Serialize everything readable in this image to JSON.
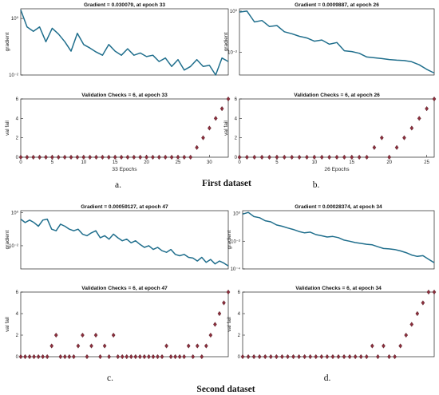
{
  "panel_labels": [
    "a.",
    "b.",
    "c.",
    "d."
  ],
  "dataset_labels": [
    "First dataset",
    "Second dataset"
  ],
  "chart_data": [
    {
      "type": "line",
      "id": "gradient-a",
      "title": "Gradient = 0.030079, at epoch 33",
      "xlabel": "",
      "ylabel": "gradient",
      "log_y": true,
      "xlim": [
        0,
        33
      ],
      "ylim": [
        0.01,
        2.2
      ],
      "yticks": [
        0.01,
        1
      ],
      "ytick_labels": [
        "10⁻²",
        "10⁰"
      ],
      "xticks": [],
      "xtick_labels": [],
      "series": [
        {
          "x": [
            0,
            1,
            2,
            3,
            4,
            5,
            6,
            7,
            8,
            9,
            10,
            11,
            12,
            13,
            14,
            15,
            16,
            17,
            18,
            19,
            20,
            21,
            22,
            23,
            24,
            25,
            26,
            27,
            28,
            29,
            30,
            31,
            32,
            33
          ],
          "values": [
            2.0,
            0.5,
            0.35,
            0.5,
            0.15,
            0.45,
            0.28,
            0.15,
            0.07,
            0.3,
            0.12,
            0.09,
            0.065,
            0.05,
            0.12,
            0.07,
            0.05,
            0.085,
            0.05,
            0.06,
            0.045,
            0.05,
            0.03,
            0.04,
            0.02,
            0.035,
            0.015,
            0.02,
            0.035,
            0.02,
            0.022,
            0.01,
            0.04,
            0.03
          ]
        }
      ]
    },
    {
      "type": "scatter",
      "id": "validation-a",
      "title": "Validation Checks = 6, at epoch 33",
      "xlabel": "33 Epochs",
      "ylabel": "val fail",
      "xlim": [
        0,
        33
      ],
      "ylim": [
        0,
        6
      ],
      "yticks": [
        0,
        2,
        4,
        6
      ],
      "ytick_labels": [
        "0",
        "2",
        "4",
        "6"
      ],
      "xticks": [
        0,
        5,
        10,
        15,
        20,
        25,
        30
      ],
      "xtick_labels": [
        "0",
        "5",
        "10",
        "15",
        "20",
        "25",
        "30"
      ],
      "series": [
        {
          "x": [
            0,
            1,
            2,
            3,
            4,
            5,
            6,
            7,
            8,
            9,
            10,
            11,
            12,
            13,
            14,
            15,
            16,
            17,
            18,
            19,
            20,
            21,
            22,
            23,
            24,
            25,
            26,
            27,
            28,
            29,
            30,
            31,
            32,
            33
          ],
          "values": [
            0,
            0,
            0,
            0,
            0,
            0,
            0,
            0,
            0,
            0,
            0,
            0,
            0,
            0,
            0,
            0,
            0,
            0,
            0,
            0,
            0,
            0,
            0,
            0,
            0,
            0,
            0,
            0,
            1,
            2,
            3,
            4,
            5,
            6
          ]
        }
      ]
    },
    {
      "type": "line",
      "id": "gradient-b",
      "title": "Gradient = 0.0009887, at epoch 26",
      "xlabel": "",
      "ylabel": "gradient",
      "log_y": true,
      "xlim": [
        0,
        26
      ],
      "ylim": [
        0.0008,
        1.3
      ],
      "yticks": [
        0.01,
        1
      ],
      "ytick_labels": [
        "10⁻²",
        "10⁰"
      ],
      "xticks": [],
      "xtick_labels": [],
      "series": [
        {
          "x": [
            0,
            1,
            2,
            3,
            4,
            5,
            6,
            7,
            8,
            9,
            10,
            11,
            12,
            13,
            14,
            15,
            16,
            17,
            18,
            19,
            20,
            21,
            22,
            23,
            24,
            25,
            26
          ],
          "values": [
            0.9,
            1.0,
            0.3,
            0.35,
            0.18,
            0.2,
            0.1,
            0.08,
            0.06,
            0.05,
            0.035,
            0.04,
            0.025,
            0.03,
            0.012,
            0.011,
            0.009,
            0.006,
            0.0055,
            0.005,
            0.0045,
            0.0042,
            0.004,
            0.0035,
            0.0025,
            0.0015,
            0.001
          ]
        }
      ]
    },
    {
      "type": "scatter",
      "id": "validation-b",
      "title": "Validation Checks = 6, at epoch 26",
      "xlabel": "26 Epochs",
      "ylabel": "val fail",
      "xlim": [
        0,
        26
      ],
      "ylim": [
        0,
        6
      ],
      "yticks": [
        0,
        2,
        4,
        6
      ],
      "ytick_labels": [
        "0",
        "2",
        "4",
        "6"
      ],
      "xticks": [
        0,
        5,
        10,
        15,
        20,
        25
      ],
      "xtick_labels": [
        "0",
        "5",
        "10",
        "15",
        "20",
        "25"
      ],
      "series": [
        {
          "x": [
            0,
            1,
            2,
            3,
            4,
            5,
            6,
            7,
            8,
            9,
            10,
            11,
            12,
            13,
            14,
            15,
            16,
            17,
            18,
            19,
            20,
            21,
            22,
            23,
            24,
            25,
            26
          ],
          "values": [
            0,
            0,
            0,
            0,
            0,
            0,
            0,
            0,
            0,
            0,
            0,
            0,
            0,
            0,
            0,
            0,
            0,
            0,
            1,
            2,
            0,
            1,
            2,
            3,
            4,
            5,
            6
          ]
        }
      ]
    },
    {
      "type": "line",
      "id": "gradient-c",
      "title": "Gradient = 0.00059127, at epoch 47",
      "xlabel": "",
      "ylabel": "gradient",
      "log_y": true,
      "xlim": [
        0,
        47
      ],
      "ylim": [
        0.0004,
        1.3
      ],
      "yticks": [
        0.01,
        1
      ],
      "ytick_labels": [
        "10⁻²",
        "10⁰"
      ],
      "xticks": [],
      "xtick_labels": [],
      "series": [
        {
          "x": [
            0,
            1,
            2,
            3,
            4,
            5,
            6,
            7,
            8,
            9,
            10,
            11,
            12,
            13,
            14,
            15,
            16,
            17,
            18,
            19,
            20,
            21,
            22,
            23,
            24,
            25,
            26,
            27,
            28,
            29,
            30,
            31,
            32,
            33,
            34,
            35,
            36,
            37,
            38,
            39,
            40,
            41,
            42,
            43,
            44,
            45,
            46,
            47
          ],
          "values": [
            0.4,
            0.25,
            0.35,
            0.25,
            0.15,
            0.35,
            0.4,
            0.1,
            0.08,
            0.2,
            0.15,
            0.1,
            0.08,
            0.1,
            0.05,
            0.04,
            0.06,
            0.08,
            0.03,
            0.04,
            0.025,
            0.05,
            0.03,
            0.02,
            0.025,
            0.015,
            0.02,
            0.012,
            0.008,
            0.01,
            0.006,
            0.008,
            0.005,
            0.004,
            0.006,
            0.003,
            0.0025,
            0.003,
            0.002,
            0.0018,
            0.0012,
            0.002,
            0.001,
            0.0015,
            0.0008,
            0.0012,
            0.0009,
            0.0006
          ]
        }
      ]
    },
    {
      "type": "scatter",
      "id": "validation-c",
      "title": "Validation Checks = 6, at epoch 47",
      "xlabel": "",
      "ylabel": "val fail",
      "xlim": [
        0,
        47
      ],
      "ylim": [
        0,
        6
      ],
      "yticks": [
        0,
        2,
        4,
        6
      ],
      "ytick_labels": [
        "0",
        "2",
        "4",
        "6"
      ],
      "xticks": [],
      "xtick_labels": [],
      "series": [
        {
          "x": [
            0,
            1,
            2,
            3,
            4,
            5,
            6,
            7,
            8,
            9,
            10,
            11,
            12,
            13,
            14,
            15,
            16,
            17,
            18,
            19,
            20,
            21,
            22,
            23,
            24,
            25,
            26,
            27,
            28,
            29,
            30,
            31,
            32,
            33,
            34,
            35,
            36,
            37,
            38,
            39,
            40,
            41,
            42,
            43,
            44,
            45,
            46,
            47
          ],
          "values": [
            0,
            0,
            0,
            0,
            0,
            0,
            0,
            1,
            2,
            0,
            0,
            0,
            0,
            1,
            2,
            0,
            1,
            2,
            0,
            1,
            0,
            2,
            0,
            0,
            0,
            0,
            0,
            0,
            0,
            0,
            0,
            0,
            0,
            1,
            0,
            0,
            0,
            0,
            1,
            0,
            1,
            0,
            1,
            2,
            3,
            4,
            5,
            6
          ]
        }
      ]
    },
    {
      "type": "line",
      "id": "gradient-d",
      "title": "Gradient = 0.00028374, at epoch 34",
      "xlabel": "",
      "ylabel": "gradient",
      "log_y": true,
      "xlim": [
        0,
        34
      ],
      "ylim": [
        0.0001,
        1.6
      ],
      "yticks": [
        0.0001,
        0.01,
        1
      ],
      "ytick_labels": [
        "10⁻⁴",
        "10⁻²",
        "10⁰"
      ],
      "xticks": [],
      "xtick_labels": [],
      "series": [
        {
          "x": [
            0,
            1,
            2,
            3,
            4,
            5,
            6,
            7,
            8,
            9,
            10,
            11,
            12,
            13,
            14,
            15,
            16,
            17,
            18,
            19,
            20,
            21,
            22,
            23,
            24,
            25,
            26,
            27,
            28,
            29,
            30,
            31,
            32,
            33,
            34
          ],
          "values": [
            0.9,
            1.2,
            0.6,
            0.5,
            0.3,
            0.25,
            0.15,
            0.12,
            0.09,
            0.07,
            0.05,
            0.04,
            0.045,
            0.03,
            0.025,
            0.02,
            0.022,
            0.018,
            0.012,
            0.01,
            0.008,
            0.007,
            0.006,
            0.0055,
            0.004,
            0.003,
            0.0028,
            0.0025,
            0.002,
            0.0015,
            0.001,
            0.0008,
            0.0009,
            0.0005,
            0.00028
          ]
        }
      ]
    },
    {
      "type": "scatter",
      "id": "validation-d",
      "title": "Validation Checks = 6, at epoch 34",
      "xlabel": "",
      "ylabel": "val fail",
      "xlim": [
        0,
        34
      ],
      "ylim": [
        0,
        6
      ],
      "yticks": [
        0,
        2,
        4,
        6
      ],
      "ytick_labels": [
        "0",
        "2",
        "4",
        "6"
      ],
      "xticks": [],
      "xtick_labels": [],
      "series": [
        {
          "x": [
            0,
            1,
            2,
            3,
            4,
            5,
            6,
            7,
            8,
            9,
            10,
            11,
            12,
            13,
            14,
            15,
            16,
            17,
            18,
            19,
            20,
            21,
            22,
            23,
            24,
            25,
            26,
            27,
            28,
            29,
            30,
            31,
            32,
            33,
            34
          ],
          "values": [
            0,
            0,
            0,
            0,
            0,
            0,
            0,
            0,
            0,
            0,
            0,
            0,
            0,
            0,
            0,
            0,
            0,
            0,
            0,
            0,
            0,
            0,
            0,
            1,
            0,
            1,
            0,
            0,
            1,
            2,
            3,
            4,
            5,
            6,
            6
          ]
        }
      ]
    }
  ],
  "colors": {
    "line": "#1f6e8c",
    "marker": "#8b2e3c",
    "marker_edge": "#4a1a22",
    "axis": "#222222"
  }
}
